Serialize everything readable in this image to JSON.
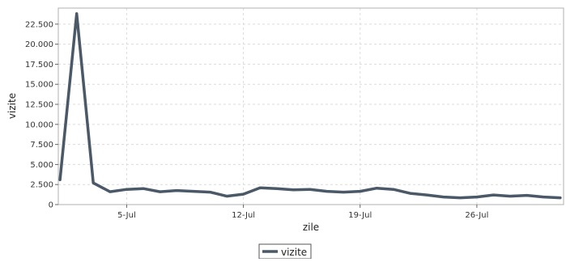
{
  "chart_data": {
    "type": "line",
    "title": "",
    "xlabel": "zile",
    "ylabel": "vizite",
    "ylim": [
      0,
      24500
    ],
    "yticks": [
      "0",
      "2.500",
      "5.000",
      "7.500",
      "10.000",
      "12.500",
      "15.000",
      "17.500",
      "20.000",
      "22.500"
    ],
    "ytick_values": [
      0,
      2500,
      5000,
      7500,
      10000,
      12500,
      15000,
      17500,
      20000,
      22500
    ],
    "xticks": [
      "5-Jul",
      "12-Jul",
      "19-Jul",
      "26-Jul"
    ],
    "xtick_days": [
      5,
      12,
      19,
      26
    ],
    "xlim_days": [
      0.9,
      31.2
    ],
    "grid": true,
    "legend_position": "bottom-center",
    "series": [
      {
        "name": "vizite",
        "color": "#4a5868",
        "x_days": [
          1,
          2,
          3,
          4,
          5,
          6,
          7,
          8,
          9,
          10,
          11,
          12,
          13,
          14,
          15,
          16,
          17,
          18,
          19,
          20,
          21,
          22,
          23,
          24,
          25,
          26,
          27,
          28,
          29,
          30,
          31
        ],
        "values": [
          3100,
          23800,
          2700,
          1600,
          1900,
          2000,
          1600,
          1750,
          1650,
          1550,
          1050,
          1300,
          2100,
          2000,
          1850,
          1900,
          1650,
          1550,
          1650,
          2050,
          1900,
          1400,
          1200,
          950,
          850,
          950,
          1200,
          1050,
          1150,
          950,
          850
        ]
      }
    ]
  }
}
